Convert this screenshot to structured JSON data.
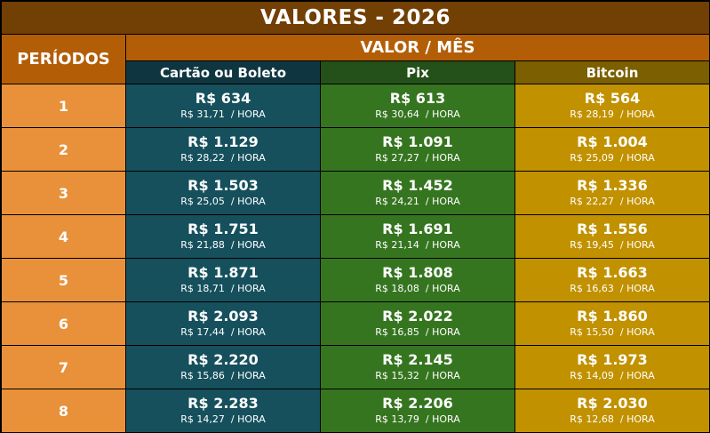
{
  "title": "VALORES - 2026",
  "header": {
    "periods_label": "PERÍODOS",
    "value_label": "VALOR / MÊS",
    "columns": [
      {
        "label": "Cartão ou Boleto",
        "header_color": "#0f3640",
        "cell_color": "#16505d"
      },
      {
        "label": "Pix",
        "header_color": "#245019",
        "cell_color": "#367520"
      },
      {
        "label": "Bitcoin",
        "header_color": "#7b5f00",
        "cell_color": "#c19100"
      }
    ]
  },
  "colors": {
    "title_bg": "#723f04",
    "header_bg": "#b35e07",
    "period_bg": "#e8913a",
    "border": "#000000"
  },
  "hour_suffix": "/ HORA",
  "rows": [
    {
      "period": "1",
      "values": [
        {
          "month": "R$ 634",
          "hour": "R$ 31,71"
        },
        {
          "month": "R$ 613",
          "hour": "R$ 30,64"
        },
        {
          "month": "R$ 564",
          "hour": "R$ 28,19"
        }
      ]
    },
    {
      "period": "2",
      "values": [
        {
          "month": "R$ 1.129",
          "hour": "R$ 28,22"
        },
        {
          "month": "R$ 1.091",
          "hour": "R$ 27,27"
        },
        {
          "month": "R$ 1.004",
          "hour": "R$ 25,09"
        }
      ]
    },
    {
      "period": "3",
      "values": [
        {
          "month": "R$ 1.503",
          "hour": "R$ 25,05"
        },
        {
          "month": "R$ 1.452",
          "hour": "R$ 24,21"
        },
        {
          "month": "R$ 1.336",
          "hour": "R$ 22,27"
        }
      ]
    },
    {
      "period": "4",
      "values": [
        {
          "month": "R$ 1.751",
          "hour": "R$ 21,88"
        },
        {
          "month": "R$ 1.691",
          "hour": "R$ 21,14"
        },
        {
          "month": "R$ 1.556",
          "hour": "R$ 19,45"
        }
      ]
    },
    {
      "period": "5",
      "values": [
        {
          "month": "R$ 1.871",
          "hour": "R$ 18,71"
        },
        {
          "month": "R$ 1.808",
          "hour": "R$ 18,08"
        },
        {
          "month": "R$ 1.663",
          "hour": "R$ 16,63"
        }
      ]
    },
    {
      "period": "6",
      "values": [
        {
          "month": "R$ 2.093",
          "hour": "R$ 17,44"
        },
        {
          "month": "R$ 2.022",
          "hour": "R$ 16,85"
        },
        {
          "month": "R$ 1.860",
          "hour": "R$ 15,50"
        }
      ]
    },
    {
      "period": "7",
      "values": [
        {
          "month": "R$ 2.220",
          "hour": "R$ 15,86"
        },
        {
          "month": "R$ 2.145",
          "hour": "R$ 15,32"
        },
        {
          "month": "R$ 1.973",
          "hour": "R$ 14,09"
        }
      ]
    },
    {
      "period": "8",
      "values": [
        {
          "month": "R$ 2.283",
          "hour": "R$ 14,27"
        },
        {
          "month": "R$ 2.206",
          "hour": "R$ 13,79"
        },
        {
          "month": "R$ 2.030",
          "hour": "R$ 12,68"
        }
      ]
    }
  ]
}
